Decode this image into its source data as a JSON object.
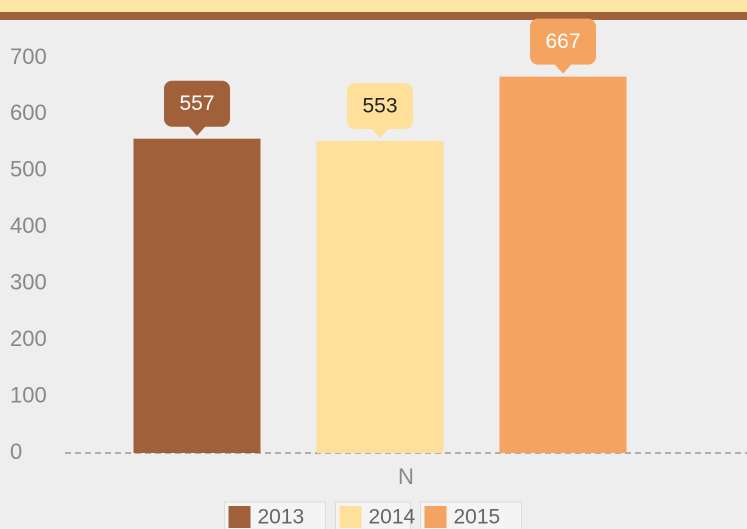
{
  "chart_data": {
    "type": "bar",
    "categories": [
      "N"
    ],
    "series": [
      {
        "name": "2013",
        "color": "#a0603a",
        "values": [
          557
        ]
      },
      {
        "name": "2014",
        "color": "#ffe09a",
        "values": [
          553
        ]
      },
      {
        "name": "2015",
        "color": "#f4a460",
        "values": [
          667
        ]
      }
    ],
    "ylim": [
      0,
      700
    ],
    "yticks": [
      0,
      100,
      200,
      300,
      400,
      500,
      600,
      700
    ],
    "legend": "bottom"
  }
}
